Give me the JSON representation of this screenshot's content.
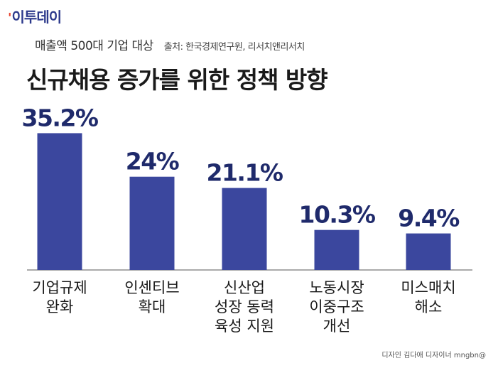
{
  "logo": {
    "text": "이투데이"
  },
  "header": {
    "subtitle": "매출액 500대 기업 대상",
    "source": "출처: 한국경제연구원, 리서치앤리서치",
    "title": "신규채용 증가를 위한 정책 방향"
  },
  "credit": "디자인 김다애 디자이너 mngbn@",
  "colors": {
    "bar": "#3b479e",
    "label": "#1f2a6b",
    "axis": "#555555"
  },
  "chart_data": {
    "type": "bar",
    "title": "신규채용 증가를 위한 정책 방향",
    "categories": [
      [
        "기업규제",
        "완화"
      ],
      [
        "인센티브",
        "확대"
      ],
      [
        "신산업",
        "성장 동력",
        "육성 지원"
      ],
      [
        "노동시장",
        "이중구조",
        "개선"
      ],
      [
        "미스매치",
        "해소"
      ]
    ],
    "values": [
      35.2,
      24,
      21.1,
      10.3,
      9.4
    ],
    "value_labels": [
      "35.2%",
      "24%",
      "21.1%",
      "10.3%",
      "9.4%"
    ],
    "ylim": [
      0,
      40
    ],
    "grid": false
  }
}
